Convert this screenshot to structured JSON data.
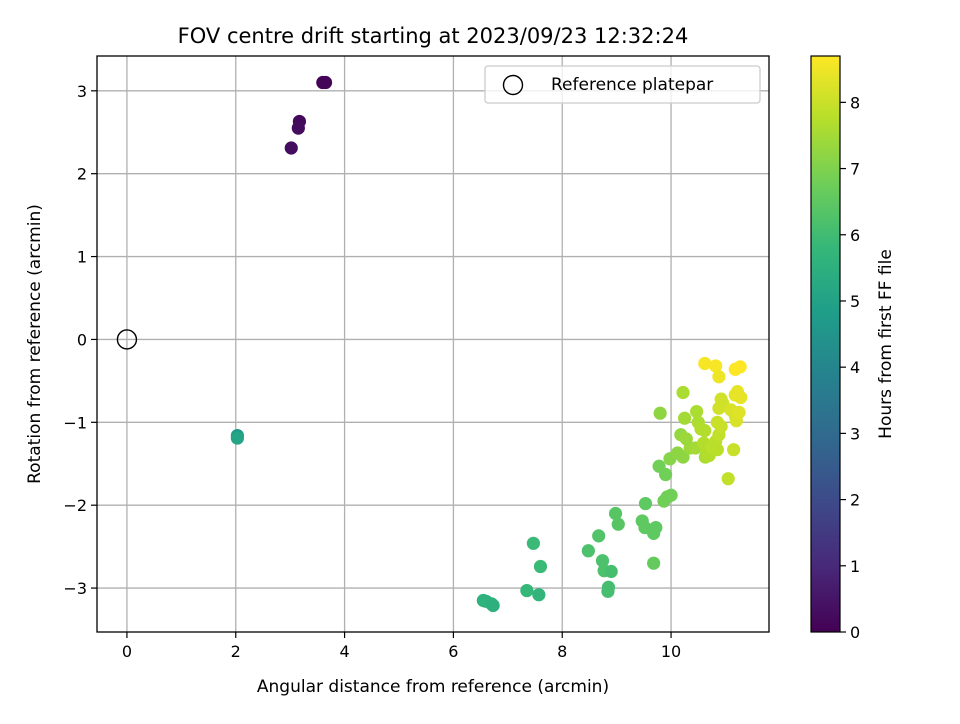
{
  "chart_data": {
    "type": "scatter",
    "title": "FOV centre drift starting at 2023/09/23 12:32:24",
    "xlabel": "Angular distance from reference (arcmin)",
    "ylabel": "Rotation from reference (arcmin)",
    "xlim": [
      -0.55,
      11.8
    ],
    "ylim": [
      -3.53,
      3.42
    ],
    "xticks": [
      0,
      2,
      4,
      6,
      8,
      10
    ],
    "yticks": [
      -3,
      -2,
      -1,
      0,
      1,
      2,
      3
    ],
    "grid": true,
    "legend": {
      "placement": "top-right",
      "label": "Reference platepar"
    },
    "reference_point": {
      "x": 0,
      "y": 0
    },
    "colorbar": {
      "label": "Hours from first FF file",
      "range": [
        0,
        8.7
      ],
      "ticks": [
        0,
        1,
        2,
        3,
        4,
        5,
        6,
        7,
        8
      ],
      "colormap": [
        "#440154",
        "#482878",
        "#3e4989",
        "#31688e",
        "#26828e",
        "#1f9e89",
        "#35b779",
        "#6ece58",
        "#b5de2b",
        "#fde725"
      ]
    },
    "points": [
      {
        "x": 3.6,
        "y": 3.1,
        "c": 0.05
      },
      {
        "x": 3.65,
        "y": 3.1,
        "c": 0.1
      },
      {
        "x": 3.17,
        "y": 2.63,
        "c": 0.2
      },
      {
        "x": 3.15,
        "y": 2.55,
        "c": 0.25
      },
      {
        "x": 3.02,
        "y": 2.31,
        "c": 0.3
      },
      {
        "x": 2.03,
        "y": -1.16,
        "c": 4.7
      },
      {
        "x": 2.03,
        "y": -1.19,
        "c": 5.1
      },
      {
        "x": 6.55,
        "y": -3.15,
        "c": 5.6
      },
      {
        "x": 6.6,
        "y": -3.16,
        "c": 5.6
      },
      {
        "x": 6.7,
        "y": -3.19,
        "c": 5.55
      },
      {
        "x": 6.73,
        "y": -3.21,
        "c": 5.5
      },
      {
        "x": 7.35,
        "y": -3.03,
        "c": 5.8
      },
      {
        "x": 7.57,
        "y": -3.08,
        "c": 5.7
      },
      {
        "x": 7.47,
        "y": -2.46,
        "c": 5.9
      },
      {
        "x": 7.6,
        "y": -2.74,
        "c": 5.9
      },
      {
        "x": 8.48,
        "y": -2.55,
        "c": 6.2
      },
      {
        "x": 8.67,
        "y": -2.37,
        "c": 6.3
      },
      {
        "x": 8.74,
        "y": -2.67,
        "c": 6.2
      },
      {
        "x": 8.77,
        "y": -2.79,
        "c": 6.2
      },
      {
        "x": 8.9,
        "y": -2.8,
        "c": 6.1
      },
      {
        "x": 8.85,
        "y": -2.99,
        "c": 6.1
      },
      {
        "x": 8.84,
        "y": -3.04,
        "c": 6.1
      },
      {
        "x": 8.98,
        "y": -2.1,
        "c": 6.4
      },
      {
        "x": 9.03,
        "y": -2.23,
        "c": 6.4
      },
      {
        "x": 9.47,
        "y": -2.19,
        "c": 6.5
      },
      {
        "x": 9.52,
        "y": -2.27,
        "c": 6.5
      },
      {
        "x": 9.53,
        "y": -1.98,
        "c": 6.5
      },
      {
        "x": 9.68,
        "y": -2.34,
        "c": 6.5
      },
      {
        "x": 9.72,
        "y": -2.27,
        "c": 6.5
      },
      {
        "x": 9.68,
        "y": -2.7,
        "c": 6.6
      },
      {
        "x": 9.78,
        "y": -1.53,
        "c": 6.8
      },
      {
        "x": 9.9,
        "y": -1.63,
        "c": 6.8
      },
      {
        "x": 9.87,
        "y": -1.95,
        "c": 6.8
      },
      {
        "x": 9.93,
        "y": -1.9,
        "c": 6.8
      },
      {
        "x": 10.0,
        "y": -1.88,
        "c": 6.8
      },
      {
        "x": 9.8,
        "y": -0.89,
        "c": 7.2
      },
      {
        "x": 9.98,
        "y": -1.44,
        "c": 7.1
      },
      {
        "x": 10.12,
        "y": -1.37,
        "c": 7.2
      },
      {
        "x": 10.22,
        "y": -1.42,
        "c": 7.2
      },
      {
        "x": 10.18,
        "y": -1.15,
        "c": 7.3
      },
      {
        "x": 10.28,
        "y": -1.2,
        "c": 7.4
      },
      {
        "x": 10.35,
        "y": -1.31,
        "c": 7.4
      },
      {
        "x": 10.45,
        "y": -1.31,
        "c": 7.5
      },
      {
        "x": 10.25,
        "y": -0.95,
        "c": 7.5
      },
      {
        "x": 10.22,
        "y": -0.64,
        "c": 7.6
      },
      {
        "x": 10.47,
        "y": -0.87,
        "c": 7.6
      },
      {
        "x": 10.5,
        "y": -1.0,
        "c": 7.6
      },
      {
        "x": 10.55,
        "y": -1.08,
        "c": 7.7
      },
      {
        "x": 10.62,
        "y": -1.1,
        "c": 7.7
      },
      {
        "x": 10.6,
        "y": -1.25,
        "c": 7.7
      },
      {
        "x": 10.65,
        "y": -1.33,
        "c": 7.7
      },
      {
        "x": 10.63,
        "y": -1.42,
        "c": 7.6
      },
      {
        "x": 10.7,
        "y": -1.4,
        "c": 7.7
      },
      {
        "x": 10.75,
        "y": -1.3,
        "c": 7.8
      },
      {
        "x": 10.82,
        "y": -1.23,
        "c": 7.8
      },
      {
        "x": 10.85,
        "y": -1.33,
        "c": 7.8
      },
      {
        "x": 10.88,
        "y": -1.15,
        "c": 7.9
      },
      {
        "x": 10.85,
        "y": -1.0,
        "c": 8.0
      },
      {
        "x": 10.92,
        "y": -1.05,
        "c": 8.0
      },
      {
        "x": 10.88,
        "y": -0.83,
        "c": 8.1
      },
      {
        "x": 10.92,
        "y": -0.72,
        "c": 8.1
      },
      {
        "x": 10.95,
        "y": -0.77,
        "c": 8.1
      },
      {
        "x": 11.05,
        "y": -1.68,
        "c": 7.9
      },
      {
        "x": 11.15,
        "y": -1.33,
        "c": 8.0
      },
      {
        "x": 11.1,
        "y": -0.85,
        "c": 8.2
      },
      {
        "x": 11.18,
        "y": -0.92,
        "c": 8.2
      },
      {
        "x": 11.2,
        "y": -0.98,
        "c": 8.2
      },
      {
        "x": 11.25,
        "y": -0.88,
        "c": 8.3
      },
      {
        "x": 11.18,
        "y": -0.67,
        "c": 8.4
      },
      {
        "x": 11.22,
        "y": -0.63,
        "c": 8.4
      },
      {
        "x": 11.28,
        "y": -0.7,
        "c": 8.4
      },
      {
        "x": 10.62,
        "y": -0.29,
        "c": 8.6
      },
      {
        "x": 10.82,
        "y": -0.32,
        "c": 8.6
      },
      {
        "x": 10.88,
        "y": -0.45,
        "c": 8.5
      },
      {
        "x": 11.18,
        "y": -0.36,
        "c": 8.7
      },
      {
        "x": 11.27,
        "y": -0.33,
        "c": 8.7
      }
    ]
  }
}
